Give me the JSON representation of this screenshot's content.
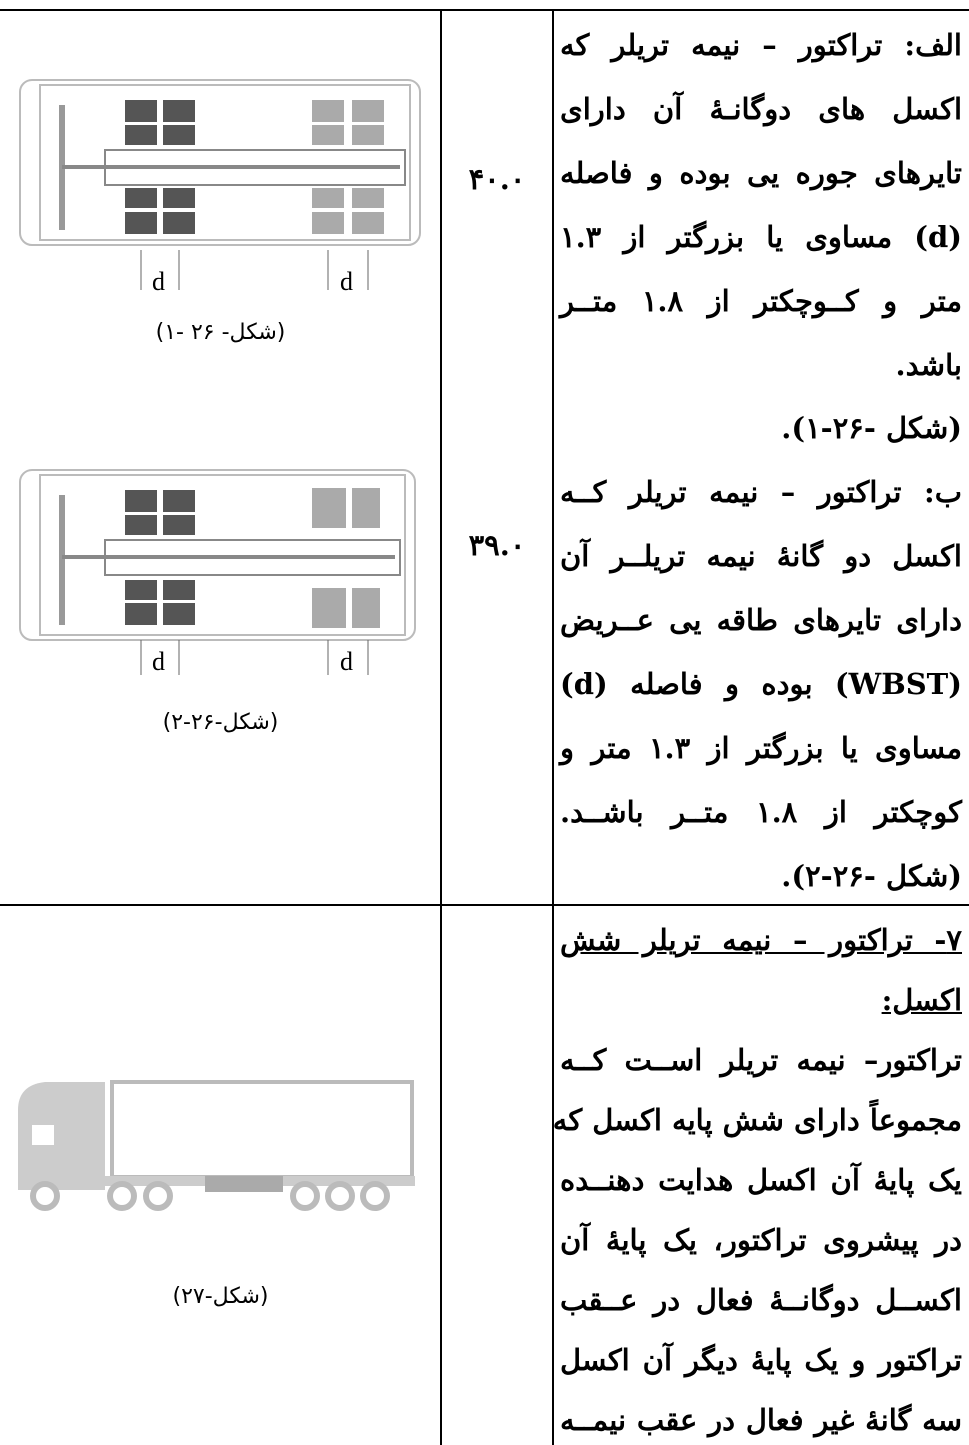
{
  "table": {
    "rows": [
      {
        "text_lines": [
          "الف: تراکتور – نیمه تریلر که",
          "اکسل های دوگانـۀ آن دارای",
          "تایرهای جوره یی بوده و فاصله",
          "(d) مساوی یا بزرگتر از ۱.۳",
          "متر و کــوچکتر از ۱.۸ متــر",
          "باشد.",
          "(شکل -۲۶-۱).",
          "ب: تراکتور – نیمه تریلر کــه",
          "اکسل دو گانۀ نیمه تریلــر آن",
          "دارای تایرهای طاقه یی عــریض",
          "(WBST) بوده و فاصله (d)",
          "مساوی یا بزرگتر از ۱.۳ متر و",
          "کوچکتر از ۱.۸ متــر باشــد.",
          "(شکل -۲۶-۲)."
        ],
        "values": [
          "۴۰.۰",
          "۳۹.۰"
        ],
        "figures": [
          {
            "labels": [
              "d",
              "d"
            ],
            "caption": "(شکل- ۲۶ -۱)"
          },
          {
            "labels": [
              "d",
              "d"
            ],
            "caption": "(شکل-۲۶-۲)"
          }
        ]
      },
      {
        "heading_lines": [
          "۷- تراکتور – نیمه تریلر شش",
          "اکسل:"
        ],
        "text_lines": [
          "تراکتور– نیمه تریلر اســت کــه",
          "مجموعاً دارای شش پایه اکسل که",
          "یک پایۀ آن اکسل هدایت دهنــده",
          "در پیشروی تراکتور، یک پایۀ آن",
          "اکســل دوگانــۀ فعال در عــقب",
          "تراکتور و یک پایۀ دیگر آن اکسل",
          "سه گانۀ غیر فعال در عقب نیمــه"
        ],
        "figures": [
          {
            "caption": "(شکل-۲۷)"
          }
        ]
      }
    ]
  }
}
